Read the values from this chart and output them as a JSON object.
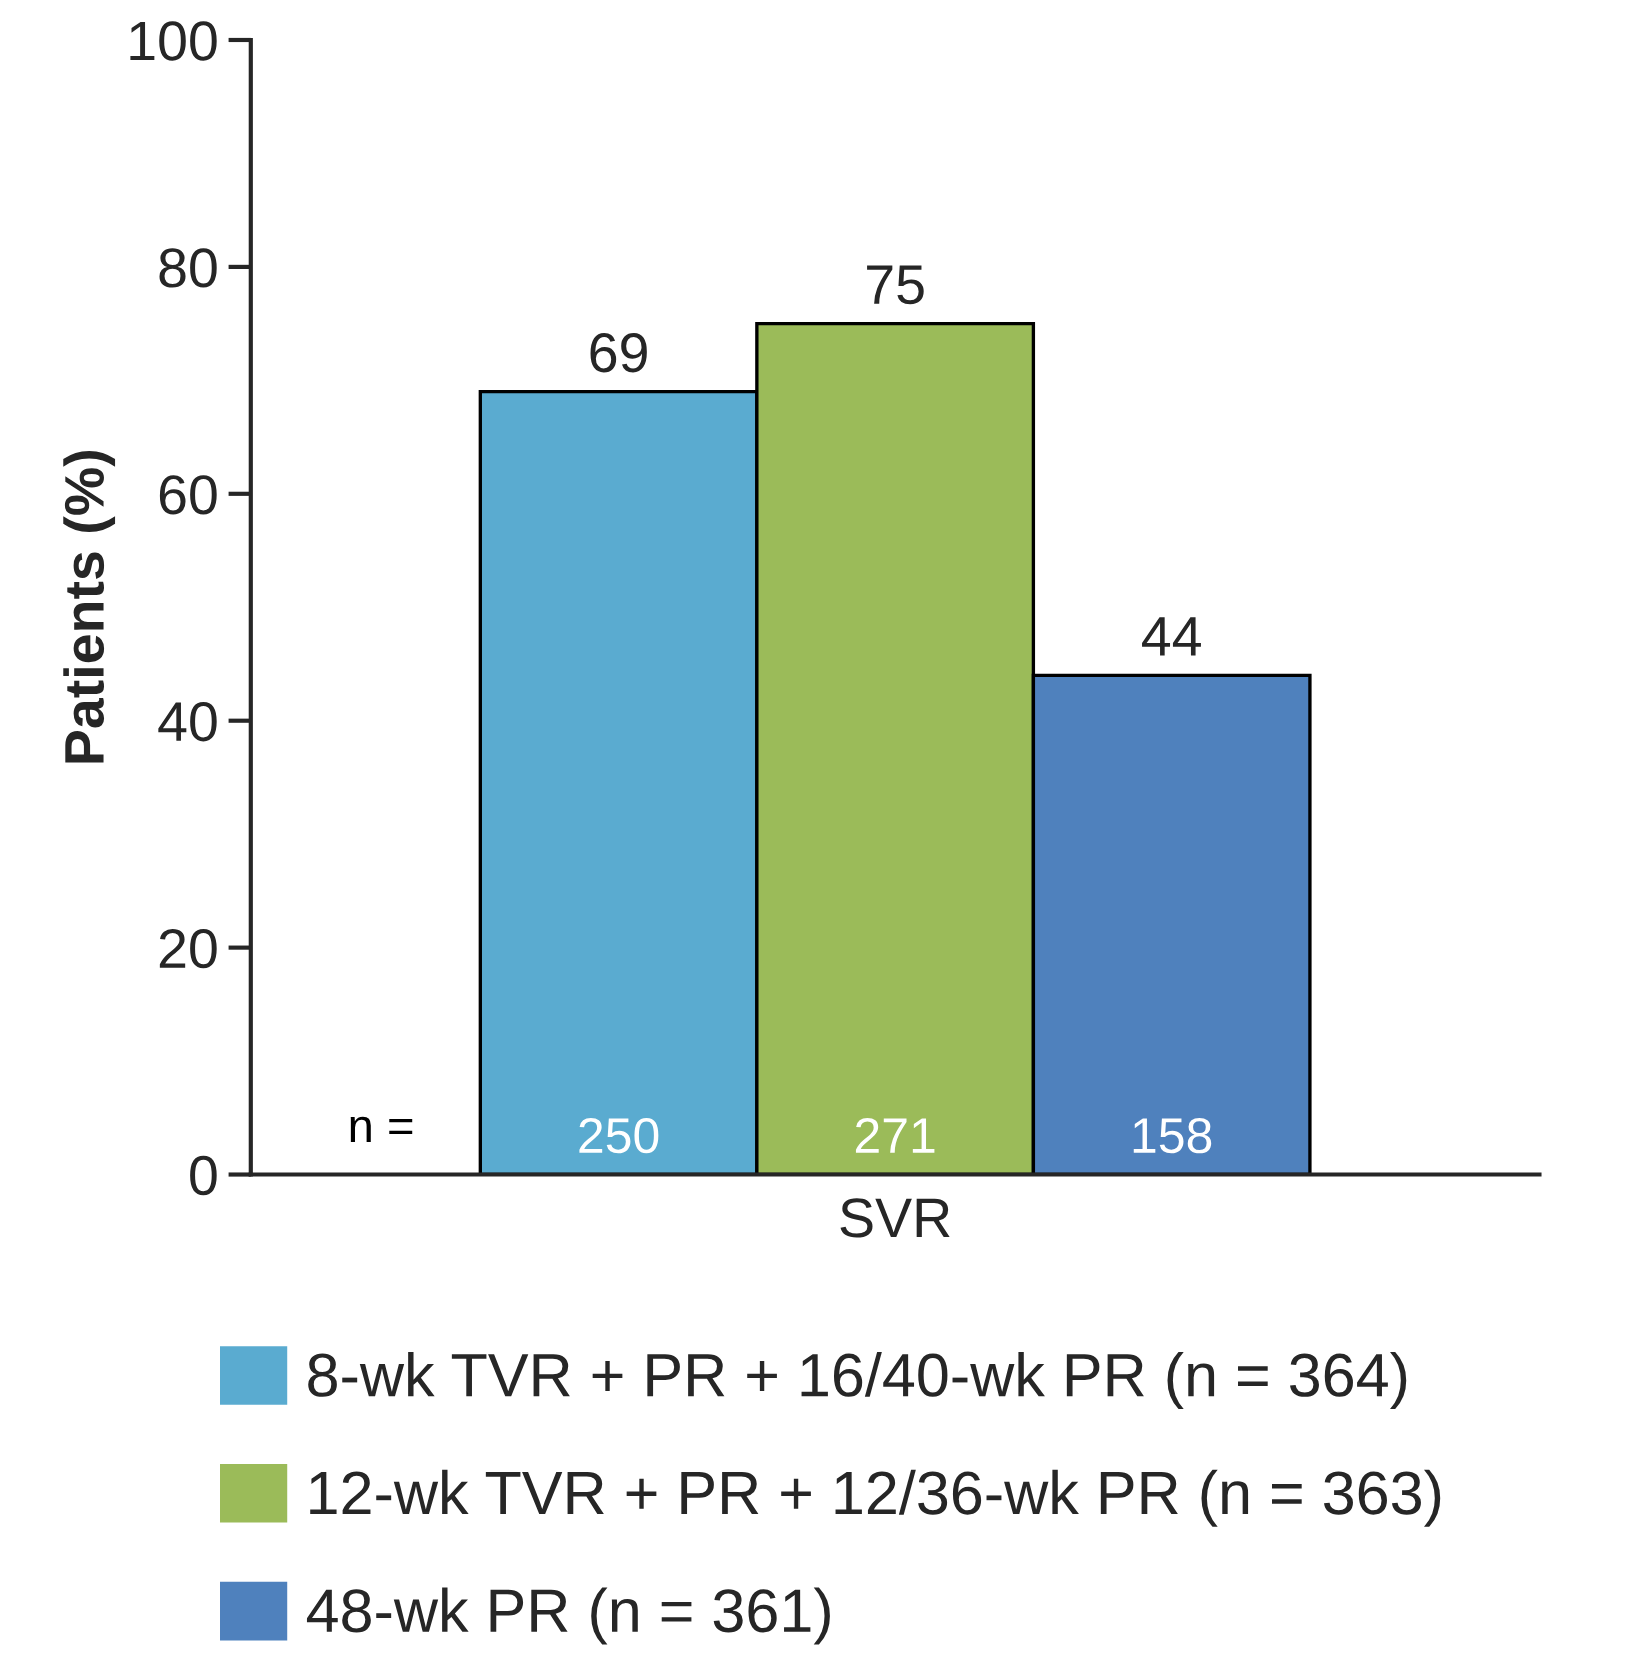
{
  "chart_data": {
    "type": "bar",
    "categories": [
      "SVR"
    ],
    "ylabel": "Patients (%)",
    "series": [
      {
        "name": "8-wk TVR + PR + 16/40-wk PR (n = 364)",
        "color": "#5aabd0",
        "values": [
          69
        ]
      },
      {
        "name": "12-wk TVR + PR + 12/36-wk PR (n = 363)",
        "color": "#9bbb59",
        "values": [
          75
        ]
      },
      {
        "name": "48-wk PR (n = 361)",
        "color": "#4f81bd",
        "values": [
          44
        ]
      }
    ],
    "ylim": [
      0,
      100
    ],
    "yticks": [
      0,
      20,
      40,
      60,
      80,
      100
    ],
    "data_labels": true,
    "grid": false,
    "legend": "bottom",
    "annotations": [
      "n =",
      "250",
      "271",
      "158"
    ]
  }
}
